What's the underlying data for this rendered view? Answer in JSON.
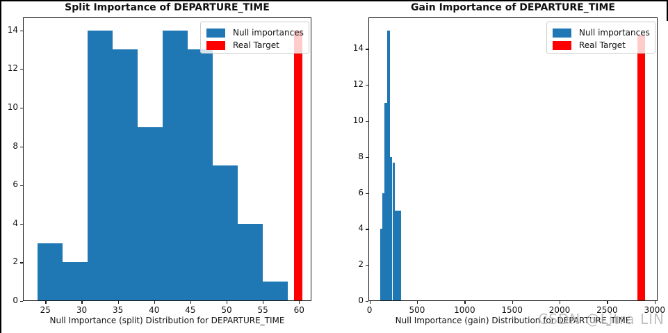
{
  "figure": {
    "background": "#ffffff",
    "frame_color": "#000000"
  },
  "watermark": {
    "text": "CSDN @Litra LIN",
    "color": "#afafaf"
  },
  "legend": {
    "items": [
      {
        "label": "Null importances",
        "color": "#1f77b4"
      },
      {
        "label": "Real Target",
        "color": "#ff0000"
      }
    ]
  },
  "chart_data": [
    {
      "type": "bar",
      "subtype": "histogram",
      "title": "Split Importance of DEPARTURE_TIME",
      "xlabel": "Null Importance (split) Distribution for DEPARTURE_TIME",
      "ylabel": "",
      "xlim": [
        21.9,
        61.7
      ],
      "ylim": [
        0,
        14.67
      ],
      "xticks": [
        25,
        30,
        35,
        40,
        45,
        50,
        55,
        60
      ],
      "yticks": [
        0,
        2,
        4,
        6,
        8,
        10,
        12,
        14
      ],
      "grid": false,
      "legend_position": "upper right",
      "series": [
        {
          "name": "Null importances",
          "color": "#1f77b4",
          "bars": [
            {
              "x0": 23.9,
              "x1": 27.35,
              "count": 3
            },
            {
              "x0": 27.35,
              "x1": 30.8,
              "count": 2
            },
            {
              "x0": 30.8,
              "x1": 34.25,
              "count": 14
            },
            {
              "x0": 34.25,
              "x1": 37.7,
              "count": 13
            },
            {
              "x0": 37.7,
              "x1": 41.15,
              "count": 9
            },
            {
              "x0": 41.15,
              "x1": 44.6,
              "count": 14
            },
            {
              "x0": 44.6,
              "x1": 48.05,
              "count": 13
            },
            {
              "x0": 48.05,
              "x1": 51.5,
              "count": 7
            },
            {
              "x0": 51.5,
              "x1": 54.95,
              "count": 4
            },
            {
              "x0": 54.95,
              "x1": 58.4,
              "count": 1
            }
          ]
        },
        {
          "name": "Real Target",
          "color": "#ff0000",
          "bars": [
            {
              "x0": 59.3,
              "x1": 60.45,
              "count": 14
            }
          ]
        }
      ]
    },
    {
      "type": "bar",
      "subtype": "histogram",
      "title": "Gain Importance of DEPARTURE_TIME",
      "xlabel": "Null Importance (gain) Distribution for DEPARTURE_TIME",
      "ylabel": "",
      "xlim": [
        -12,
        3031
      ],
      "ylim": [
        0,
        15.75
      ],
      "xticks": [
        0,
        500,
        1000,
        1500,
        2000,
        2500,
        3000
      ],
      "yticks": [
        0,
        2,
        4,
        6,
        8,
        10,
        12,
        14
      ],
      "grid": false,
      "legend_position": "upper right",
      "series": [
        {
          "name": "Null importances",
          "color": "#1f77b4",
          "bars": [
            {
              "x0": 115,
              "x1": 137,
              "count": 4
            },
            {
              "x0": 137,
              "x1": 158,
              "count": 6
            },
            {
              "x0": 158,
              "x1": 187,
              "count": 11
            },
            {
              "x0": 187,
              "x1": 216,
              "count": 15
            },
            {
              "x0": 216,
              "x1": 234,
              "count": 8
            },
            {
              "x0": 242,
              "x1": 266,
              "count": 7.7
            },
            {
              "x0": 266,
              "x1": 332,
              "count": 5
            }
          ]
        },
        {
          "name": "Real Target",
          "color": "#ff0000",
          "bars": [
            {
              "x0": 2820,
              "x1": 2900,
              "count": 14.8
            }
          ]
        }
      ]
    }
  ]
}
